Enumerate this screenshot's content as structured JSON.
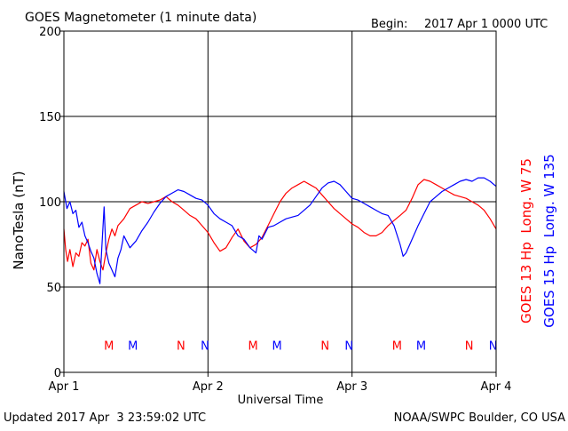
{
  "header": {
    "title": "GOES Magnetometer (1 minute data)",
    "begin_label": "Begin:",
    "begin_value": "2017 Apr 1 0000 UTC"
  },
  "footer": {
    "updated": "Updated 2017 Apr  3 23:59:02 UTC",
    "credit": "NOAA/SWPC Boulder, CO USA"
  },
  "chart_data": {
    "type": "line",
    "title": "GOES Magnetometer (1 minute data)",
    "xlabel": "Universal Time",
    "ylabel": "NanoTesla (nT)",
    "ylim": [
      0,
      200
    ],
    "yticks": [
      0,
      50,
      100,
      150,
      200
    ],
    "xlim_hours": [
      0,
      72
    ],
    "x_unit": "hours since 2017 Apr 1 0000 UTC",
    "xticks": [
      {
        "hour": 0,
        "label": "Apr 1"
      },
      {
        "hour": 24,
        "label": "Apr 2"
      },
      {
        "hour": 48,
        "label": "Apr 3"
      },
      {
        "hour": 72,
        "label": "Apr 4"
      }
    ],
    "grid": true,
    "legend_position": "right, vertical",
    "series": [
      {
        "name": "GOES 13 Hp  Long. W 75",
        "color": "#ff0000",
        "points": [
          [
            0,
            84
          ],
          [
            0.3,
            72
          ],
          [
            0.6,
            65
          ],
          [
            1,
            72
          ],
          [
            1.5,
            62
          ],
          [
            2,
            70
          ],
          [
            2.5,
            68
          ],
          [
            3,
            76
          ],
          [
            3.5,
            74
          ],
          [
            4,
            78
          ],
          [
            4.5,
            64
          ],
          [
            5,
            60
          ],
          [
            5.5,
            72
          ],
          [
            6,
            65
          ],
          [
            6.5,
            60
          ],
          [
            7,
            70
          ],
          [
            7.5,
            78
          ],
          [
            8,
            84
          ],
          [
            8.5,
            80
          ],
          [
            9,
            86
          ],
          [
            10,
            90
          ],
          [
            11,
            96
          ],
          [
            12,
            98
          ],
          [
            13,
            100
          ],
          [
            14,
            99
          ],
          [
            15,
            100
          ],
          [
            16,
            101
          ],
          [
            17,
            103
          ],
          [
            18,
            100
          ],
          [
            19,
            98
          ],
          [
            20,
            95
          ],
          [
            21,
            92
          ],
          [
            22,
            90
          ],
          [
            23,
            86
          ],
          [
            24,
            82
          ],
          [
            25,
            76
          ],
          [
            26,
            71
          ],
          [
            27,
            73
          ],
          [
            28,
            79
          ],
          [
            29,
            84
          ],
          [
            30,
            77
          ],
          [
            31,
            73
          ],
          [
            32,
            75
          ],
          [
            33,
            79
          ],
          [
            34,
            86
          ],
          [
            35,
            93
          ],
          [
            36,
            100
          ],
          [
            37,
            105
          ],
          [
            38,
            108
          ],
          [
            39,
            110
          ],
          [
            40,
            112
          ],
          [
            41,
            110
          ],
          [
            42,
            108
          ],
          [
            43,
            104
          ],
          [
            44,
            100
          ],
          [
            45,
            96
          ],
          [
            46,
            93
          ],
          [
            47,
            90
          ],
          [
            48,
            87
          ],
          [
            49,
            85
          ],
          [
            50,
            82
          ],
          [
            51,
            80
          ],
          [
            52,
            80
          ],
          [
            53,
            82
          ],
          [
            54,
            86
          ],
          [
            55,
            89
          ],
          [
            56,
            92
          ],
          [
            57,
            95
          ],
          [
            58,
            102
          ],
          [
            59,
            110
          ],
          [
            60,
            113
          ],
          [
            61,
            112
          ],
          [
            62,
            110
          ],
          [
            63,
            108
          ],
          [
            64,
            106
          ],
          [
            65,
            104
          ],
          [
            66,
            103
          ],
          [
            67,
            102
          ],
          [
            68,
            100
          ],
          [
            69,
            98
          ],
          [
            70,
            95
          ],
          [
            71,
            90
          ],
          [
            72,
            84
          ]
        ]
      },
      {
        "name": "GOES 15 Hp  Long. W 135",
        "color": "#0000ff",
        "points": [
          [
            0,
            106
          ],
          [
            0.5,
            96
          ],
          [
            1,
            100
          ],
          [
            1.5,
            93
          ],
          [
            2,
            95
          ],
          [
            2.5,
            85
          ],
          [
            3,
            88
          ],
          [
            3.5,
            80
          ],
          [
            4,
            76
          ],
          [
            4.5,
            71
          ],
          [
            5,
            67
          ],
          [
            5.5,
            58
          ],
          [
            6,
            52
          ],
          [
            6.3,
            72
          ],
          [
            6.7,
            97
          ],
          [
            7,
            72
          ],
          [
            7.5,
            64
          ],
          [
            8,
            60
          ],
          [
            8.5,
            56
          ],
          [
            9,
            67
          ],
          [
            9.5,
            72
          ],
          [
            10,
            80
          ],
          [
            11,
            73
          ],
          [
            12,
            77
          ],
          [
            13,
            83
          ],
          [
            14,
            88
          ],
          [
            15,
            94
          ],
          [
            16,
            99
          ],
          [
            17,
            103
          ],
          [
            18,
            105
          ],
          [
            19,
            107
          ],
          [
            20,
            106
          ],
          [
            21,
            104
          ],
          [
            22,
            102
          ],
          [
            23,
            101
          ],
          [
            24,
            98
          ],
          [
            25,
            93
          ],
          [
            26,
            90
          ],
          [
            27,
            88
          ],
          [
            28,
            86
          ],
          [
            29,
            80
          ],
          [
            30,
            78
          ],
          [
            31,
            73
          ],
          [
            32,
            70
          ],
          [
            32.5,
            80
          ],
          [
            33,
            78
          ],
          [
            34,
            85
          ],
          [
            35,
            86
          ],
          [
            36,
            88
          ],
          [
            37,
            90
          ],
          [
            38,
            91
          ],
          [
            39,
            92
          ],
          [
            40,
            95
          ],
          [
            41,
            98
          ],
          [
            42,
            103
          ],
          [
            43,
            108
          ],
          [
            44,
            111
          ],
          [
            45,
            112
          ],
          [
            46,
            110
          ],
          [
            47,
            106
          ],
          [
            48,
            102
          ],
          [
            49,
            101
          ],
          [
            50,
            99
          ],
          [
            51,
            97
          ],
          [
            52,
            95
          ],
          [
            53,
            93
          ],
          [
            54,
            92
          ],
          [
            55,
            86
          ],
          [
            56,
            75
          ],
          [
            56.5,
            68
          ],
          [
            57,
            70
          ],
          [
            58,
            78
          ],
          [
            59,
            86
          ],
          [
            60,
            93
          ],
          [
            61,
            100
          ],
          [
            62,
            103
          ],
          [
            63,
            106
          ],
          [
            64,
            108
          ],
          [
            65,
            110
          ],
          [
            66,
            112
          ],
          [
            67,
            113
          ],
          [
            68,
            112
          ],
          [
            69,
            114
          ],
          [
            70,
            114
          ],
          [
            71,
            112
          ],
          [
            72,
            109
          ]
        ]
      }
    ],
    "annotations": [
      {
        "text": "M",
        "hour": 7.5,
        "color": "#ff0000"
      },
      {
        "text": "M",
        "hour": 11.5,
        "color": "#0000ff"
      },
      {
        "text": "N",
        "hour": 19.5,
        "color": "#ff0000"
      },
      {
        "text": "N",
        "hour": 23.5,
        "color": "#0000ff"
      },
      {
        "text": "M",
        "hour": 31.5,
        "color": "#ff0000"
      },
      {
        "text": "M",
        "hour": 35.5,
        "color": "#0000ff"
      },
      {
        "text": "N",
        "hour": 43.5,
        "color": "#ff0000"
      },
      {
        "text": "N",
        "hour": 47.5,
        "color": "#0000ff"
      },
      {
        "text": "M",
        "hour": 55.5,
        "color": "#ff0000"
      },
      {
        "text": "M",
        "hour": 59.5,
        "color": "#0000ff"
      },
      {
        "text": "N",
        "hour": 67.5,
        "color": "#ff0000"
      },
      {
        "text": "N",
        "hour": 71.5,
        "color": "#0000ff"
      }
    ],
    "annotation_level_nT": 16
  }
}
